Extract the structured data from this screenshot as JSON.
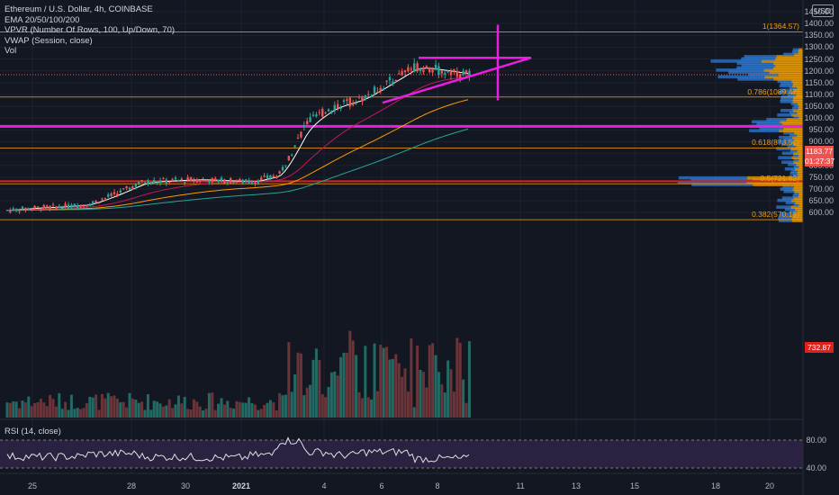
{
  "legend": {
    "title": "Ethereum / U.S. Dollar, 4h, COINBASE",
    "indicators": [
      "EMA 20/50/100/200",
      "VPVR (Number Of Rows, 100, Up/Down, 70)",
      "VWAP (Session, close)",
      "Vol"
    ]
  },
  "rsi_label": "RSI (14, close)",
  "currency": "USD",
  "badges": {
    "price": "1183.77",
    "countdown": "01:27:37",
    "level": "732.87"
  },
  "colors": {
    "background": "#131722",
    "candle_up": "#26a69a",
    "candle_down": "#ef5350",
    "magenta": "#e91ee0",
    "fib": "#f39c12",
    "red_line": "#e0201b",
    "vol_up": "#247a70",
    "vol_down": "#7a3a3c",
    "rsi_band": "#2a2240"
  },
  "chart_data": {
    "type": "candlestick",
    "symbol": "ETHUSD",
    "exchange": "COINBASE",
    "interval": "4h",
    "ylim": [
      560,
      1500
    ],
    "y_ticks": [
      1450,
      1400,
      1350,
      1300,
      1250,
      1200,
      1150,
      1100,
      1050,
      1000,
      950,
      900,
      850,
      800,
      750,
      700,
      650,
      600
    ],
    "x_ticks": [
      "25",
      "28",
      "30",
      "2021",
      "4",
      "6",
      "8",
      "11",
      "13",
      "15",
      "18",
      "20"
    ],
    "last_price": 1183.77,
    "fib_levels": [
      {
        "label": "1(1364.57)",
        "value": 1364.57
      },
      {
        "label": "0.786(1089.47)",
        "value": 1089.47
      },
      {
        "label": "0.618(873.51)",
        "value": 873.51
      },
      {
        "label": "0.5(721.82)",
        "value": 721.82
      },
      {
        "label": "0.382(570.13)",
        "value": 570.13
      }
    ],
    "horizontal_lines": [
      {
        "color": "magenta",
        "value": 965
      },
      {
        "color": "red",
        "value": 732.87
      }
    ],
    "close_path": [
      {
        "t": "Dec 23",
        "v": 610
      },
      {
        "t": "Dec 24",
        "v": 620
      },
      {
        "t": "Dec 25",
        "v": 625
      },
      {
        "t": "Dec 26",
        "v": 635
      },
      {
        "t": "Dec 27",
        "v": 680
      },
      {
        "t": "Dec 28",
        "v": 730
      },
      {
        "t": "Dec 29",
        "v": 735
      },
      {
        "t": "Dec 30",
        "v": 740
      },
      {
        "t": "Dec 31",
        "v": 735
      },
      {
        "t": "Jan 1",
        "v": 730
      },
      {
        "t": "Jan 2",
        "v": 760
      },
      {
        "t": "Jan 3",
        "v": 980
      },
      {
        "t": "Jan 4",
        "v": 1050
      },
      {
        "t": "Jan 5",
        "v": 1080
      },
      {
        "t": "Jan 6",
        "v": 1150
      },
      {
        "t": "Jan 7",
        "v": 1220
      },
      {
        "t": "Jan 8",
        "v": 1200
      },
      {
        "t": "Jan 9",
        "v": 1183.77
      }
    ],
    "rsi": {
      "levels": [
        80,
        40
      ],
      "last": 58
    }
  }
}
